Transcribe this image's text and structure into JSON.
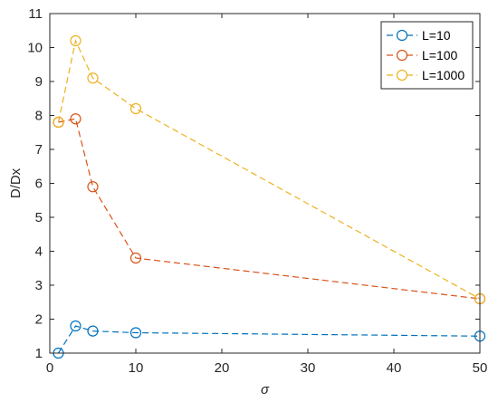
{
  "chart_data": {
    "type": "line",
    "title": "",
    "xlabel": "σ",
    "ylabel": "D/Dx",
    "xlim": [
      0,
      50
    ],
    "ylim": [
      1,
      11
    ],
    "xticks": [
      0,
      10,
      20,
      30,
      40,
      50
    ],
    "yticks": [
      1,
      2,
      3,
      4,
      5,
      6,
      7,
      8,
      9,
      10,
      11
    ],
    "grid": false,
    "legend_position": "top-right",
    "line_style": "dashed",
    "marker": "open-circle",
    "series": [
      {
        "name": "L=10",
        "color": "#0072BD",
        "x": [
          1,
          3,
          5,
          10,
          50
        ],
        "y": [
          1.0,
          1.8,
          1.65,
          1.6,
          1.5
        ]
      },
      {
        "name": "L=100",
        "color": "#D95319",
        "x": [
          1,
          3,
          5,
          10,
          50
        ],
        "y": [
          7.8,
          7.9,
          5.9,
          3.8,
          2.6
        ]
      },
      {
        "name": "L=1000",
        "color": "#EDB120",
        "x": [
          1,
          3,
          5,
          10,
          50
        ],
        "y": [
          7.8,
          10.2,
          9.1,
          8.2,
          2.6
        ]
      }
    ]
  }
}
